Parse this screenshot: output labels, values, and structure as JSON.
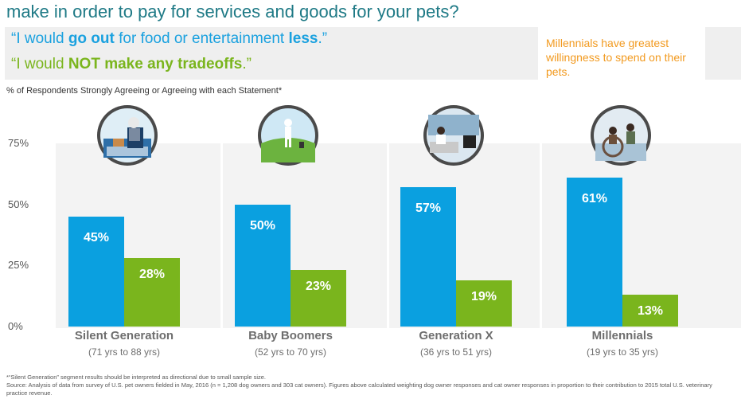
{
  "header": {
    "title": "make in order to pay for services and goods for your pets?",
    "quote1": {
      "pre": "“I would ",
      "strong1": "go out",
      "mid": " for food or entertainment ",
      "strong2": "less",
      "post": ".”"
    },
    "quote2": {
      "pre": "“I would ",
      "strong1": "NOT make any tradeoffs",
      "post": ".”"
    },
    "callout": "Millennials have greatest willingness to spend on their pets."
  },
  "subtitle": "% of Respondents Strongly Agreeing or Agreeing with each Statement*",
  "colors": {
    "go_out_less": "#0aa0e0",
    "no_tradeoffs": "#7ab51d",
    "callout": "#f29a1f",
    "title": "#1f7a86"
  },
  "icons": [
    "elderly-man-in-chair-icon",
    "golfer-icon",
    "man-on-sofa-icon",
    "family-icon"
  ],
  "chart_data": {
    "type": "bar",
    "categories": [
      "Silent Generation",
      "Baby Boomers",
      "Generation X",
      "Millennials"
    ],
    "category_ages": [
      "(71 yrs to 88 yrs)",
      "(52 yrs to 70 yrs)",
      "(36 yrs to 51 yrs)",
      "(19 yrs to 35 yrs)"
    ],
    "series": [
      {
        "values": [
          45,
          50,
          57,
          61
        ],
        "labels": [
          "45%",
          "50%",
          "57%",
          "61%"
        ]
      },
      {
        "values": [
          28,
          23,
          19,
          13
        ],
        "labels": [
          "28%",
          "23%",
          "19%",
          "13%"
        ]
      }
    ],
    "yticks": [
      "75%",
      "50%",
      "25%",
      "0%"
    ],
    "ytick_values": [
      75,
      50,
      25,
      0
    ],
    "ylim": [
      0,
      75
    ],
    "grid": false,
    "legend": "none"
  },
  "footnotes": {
    "line1": "*“Silent Generation” segment results should be interpreted as directional due to small sample size.",
    "line2": "Source: Analysis of data from survey of U.S. pet owners fielded in May, 2016 (n = 1,208 dog owners and 303 cat owners). Figures above calculated weighting dog owner responses and cat owner responses in proportion to their contribution to 2015 total U.S. veterinary practice revenue."
  }
}
